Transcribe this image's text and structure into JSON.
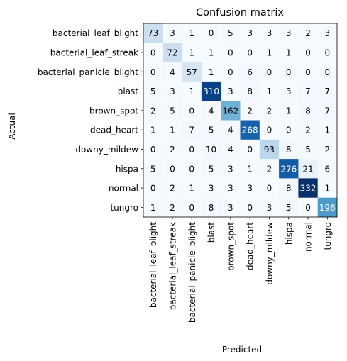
{
  "chart_data": {
    "type": "heatmap",
    "title": "Confusion matrix",
    "xlabel": "Predicted",
    "ylabel": "Actual",
    "colormap": "Blues",
    "labels": [
      "bacterial_leaf_blight",
      "bacterial_leaf_streak",
      "bacterial_panicle_blight",
      "blast",
      "brown_spot",
      "dead_heart",
      "downy_mildew",
      "hispa",
      "normal",
      "tungro"
    ],
    "matrix": [
      [
        73,
        3,
        1,
        0,
        5,
        3,
        3,
        3,
        2,
        3
      ],
      [
        0,
        72,
        1,
        1,
        0,
        0,
        1,
        1,
        0,
        0
      ],
      [
        0,
        4,
        57,
        1,
        0,
        6,
        0,
        0,
        0,
        0
      ],
      [
        5,
        3,
        1,
        310,
        3,
        8,
        1,
        3,
        7,
        7
      ],
      [
        2,
        5,
        0,
        4,
        162,
        2,
        2,
        1,
        8,
        7
      ],
      [
        1,
        1,
        7,
        5,
        4,
        268,
        0,
        0,
        2,
        1
      ],
      [
        0,
        2,
        0,
        10,
        4,
        0,
        93,
        8,
        5,
        2
      ],
      [
        5,
        0,
        0,
        5,
        3,
        1,
        2,
        276,
        21,
        6
      ],
      [
        0,
        2,
        1,
        3,
        3,
        3,
        0,
        8,
        332,
        1
      ],
      [
        1,
        2,
        0,
        8,
        3,
        0,
        3,
        5,
        0,
        196
      ]
    ]
  }
}
